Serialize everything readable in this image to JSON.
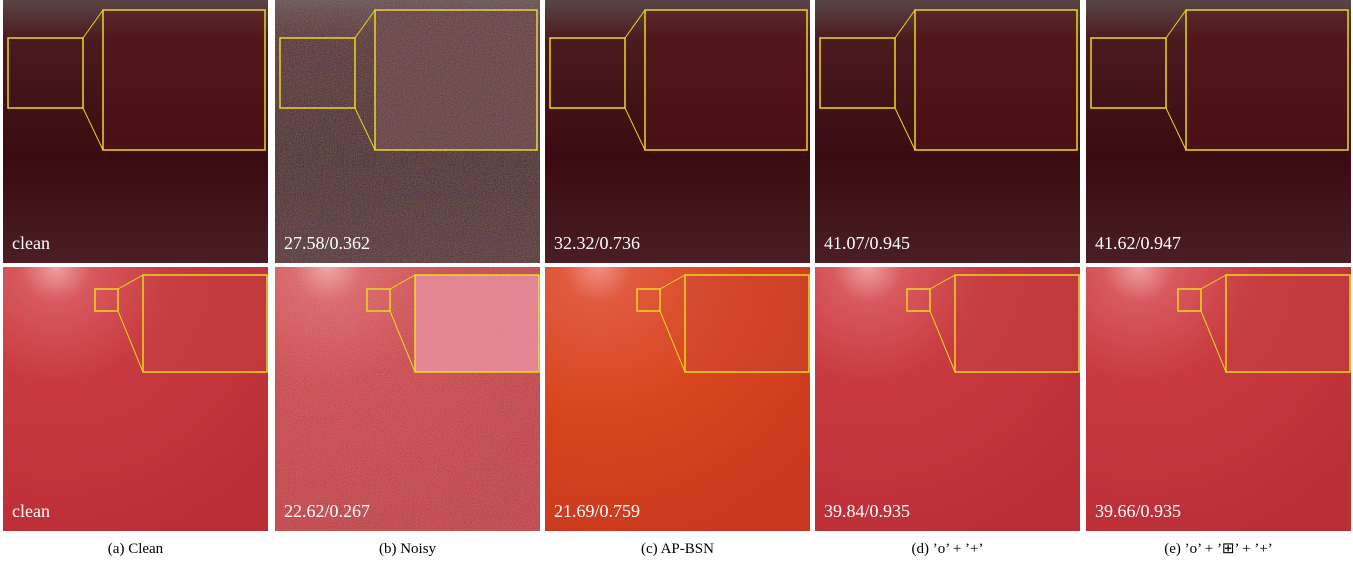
{
  "figure": {
    "columns": [
      {
        "caption": "(a) Clean",
        "labels": [
          "clean",
          "clean"
        ]
      },
      {
        "caption": "(b) Noisy",
        "labels": [
          "27.58/0.362",
          "22.62/0.267"
        ]
      },
      {
        "caption": "(c) AP-BSN",
        "labels": [
          "32.32/0.736",
          "21.69/0.759"
        ]
      },
      {
        "caption": "(d) ’o’ + ’+’",
        "labels": [
          "41.07/0.945",
          "39.84/0.935"
        ]
      },
      {
        "caption": "(e) ’o’ + ’⊞’ + ’+’",
        "labels": [
          "41.62/0.947",
          "39.66/0.935"
        ]
      }
    ]
  }
}
